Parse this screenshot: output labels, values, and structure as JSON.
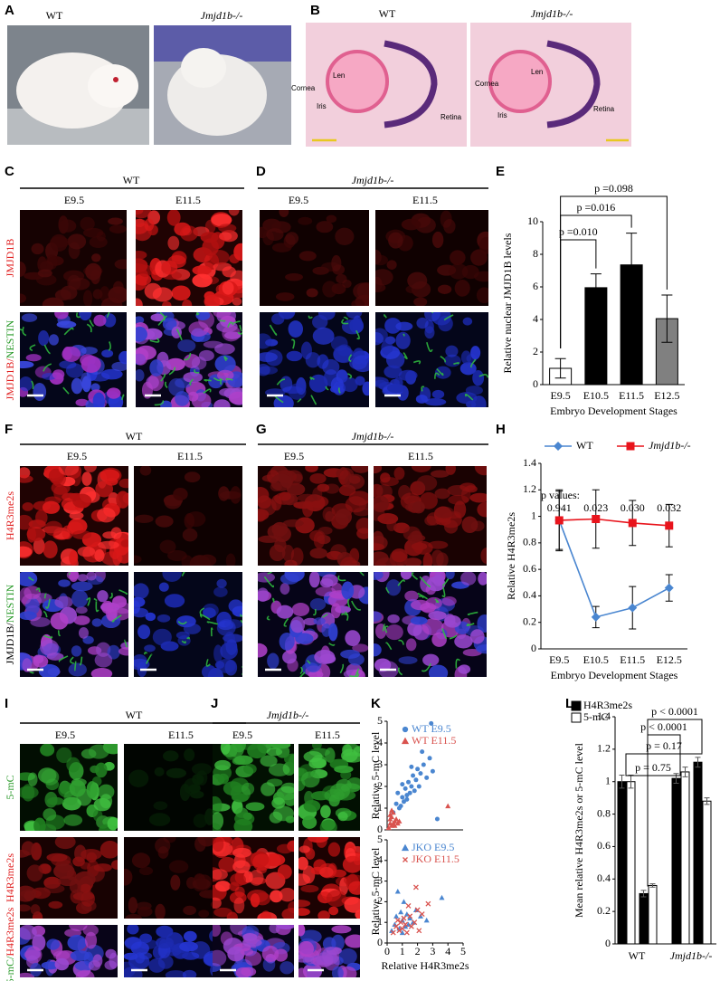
{
  "figure": {
    "A": {
      "letter": "A",
      "labels": [
        "WT",
        "Jmjd1b-/-"
      ]
    },
    "B": {
      "letter": "B",
      "labels": [
        "WT",
        "Jmjd1b-/-"
      ],
      "left_annotations": [
        "Len",
        "Cornea",
        "Iris",
        "Retina"
      ],
      "right_annotations": [
        "Cornea",
        "Len",
        "Iris",
        "Retina"
      ]
    },
    "C": {
      "letter": "C",
      "genotype": "WT",
      "stages": [
        "E9.5",
        "E11.5"
      ],
      "row_labels": [
        "JMJD1B",
        "JMJD1B/",
        "NESTIN"
      ]
    },
    "D": {
      "letter": "D",
      "genotype": "Jmjd1b-/-",
      "stages": [
        "E9.5",
        "E11.5"
      ]
    },
    "E": {
      "letter": "E"
    },
    "F": {
      "letter": "F",
      "genotype": "WT",
      "stages": [
        "E9.5",
        "E11.5"
      ],
      "row_labels": [
        "H4R3me2s",
        "JMJD1B/",
        "NESTIN"
      ]
    },
    "G": {
      "letter": "G",
      "genotype": "Jmjd1b-/-",
      "stages": [
        "E9.5",
        "E11.5"
      ]
    },
    "H": {
      "letter": "H"
    },
    "I": {
      "letter": "I",
      "genotype": "WT",
      "stages": [
        "E9.5",
        "E11.5"
      ],
      "row_labels": [
        "5-mC",
        "H4R3me2s",
        "5-mC/",
        "H4R3me2s"
      ]
    },
    "J": {
      "letter": "J",
      "genotype": "Jmjd1b-/-",
      "stages": [
        "E9.5",
        "E11.5"
      ]
    },
    "K": {
      "letter": "K"
    },
    "L": {
      "letter": "L"
    }
  },
  "chart_data": [
    {
      "type": "bar",
      "y_label": "Relative nuclear JMJD1B levels",
      "x_label": "Embryo Development Stages",
      "categories": [
        "E9.5",
        "E10.5",
        "E11.5",
        "E12.5"
      ],
      "values": [
        1.0,
        5.95,
        7.35,
        4.05
      ],
      "errors": [
        0.6,
        0.85,
        1.95,
        1.45
      ],
      "colors": [
        "#ffffff",
        "#000000",
        "#000000",
        "#808080"
      ],
      "ylim": [
        0,
        10
      ],
      "yticks": [
        0,
        2,
        4,
        6,
        8,
        10
      ],
      "annotations": [
        "p =0.010",
        "p =0.016",
        "p =0.098"
      ]
    },
    {
      "type": "line",
      "y_label": "Relative H4R3me2s",
      "x_label": "Embryo Development Stages",
      "categories": [
        "E9.5",
        "E10.5",
        "E11.5",
        "E12.5"
      ],
      "series": [
        {
          "name": "WT",
          "color": "#4a86d0",
          "marker": "diamond",
          "values": [
            0.97,
            0.24,
            0.31,
            0.46
          ],
          "errors": [
            0.23,
            0.08,
            0.16,
            0.1
          ]
        },
        {
          "name": "Jmjd1b-/-",
          "color": "#e8141c",
          "marker": "square",
          "values": [
            0.97,
            0.98,
            0.95,
            0.93
          ],
          "errors": [
            0.22,
            0.22,
            0.17,
            0.16
          ]
        }
      ],
      "ylim": [
        0,
        1.4
      ],
      "yticks": [
        0,
        0.2,
        0.4,
        0.6,
        0.8,
        1,
        1.2,
        1.4
      ],
      "legend": "top",
      "annotation": "p values:",
      "p_values": [
        "0.941",
        "0.023",
        "0.030",
        "0.032"
      ]
    },
    {
      "type": "scatter",
      "y_label": "Relative 5-mC level",
      "xlim": [
        0,
        5
      ],
      "ylim": [
        0,
        5
      ],
      "yticks": [
        0,
        1,
        2,
        3,
        4,
        5
      ],
      "legend": "top-left",
      "series": [
        {
          "name": "WT E9.5",
          "color": "#4a86d0",
          "marker": "circle",
          "x": [
            0.4,
            0.6,
            0.8,
            1.0,
            1.1,
            1.2,
            1.3,
            1.4,
            1.5,
            1.6,
            1.7,
            1.8,
            1.9,
            2.0,
            2.1,
            2.2,
            2.4,
            2.6,
            2.8,
            3.0,
            0.9,
            1.3,
            1.6,
            2.3,
            2.9,
            3.3,
            1.0,
            0.7
          ],
          "y": [
            0.8,
            1.2,
            1.0,
            1.5,
            1.3,
            1.9,
            1.6,
            2.2,
            1.7,
            2.0,
            2.5,
            1.8,
            2.3,
            2.8,
            2.0,
            2.6,
            3.0,
            2.4,
            3.3,
            2.7,
            1.1,
            1.4,
            2.9,
            3.6,
            4.9,
            0.5,
            2.1,
            1.7
          ]
        },
        {
          "name": "WT E11.5",
          "color": "#d9534f",
          "marker": "triangle",
          "x": [
            0.1,
            0.2,
            0.2,
            0.3,
            0.3,
            0.4,
            0.4,
            0.5,
            0.5,
            0.6,
            0.7,
            0.3,
            0.2,
            0.8,
            4.0
          ],
          "y": [
            0.1,
            0.3,
            0.5,
            0.2,
            0.6,
            0.3,
            0.8,
            0.4,
            0.2,
            0.5,
            0.3,
            0.9,
            0.7,
            0.4,
            1.1
          ]
        }
      ]
    },
    {
      "type": "scatter",
      "y_label": "Relative 5-mC level",
      "x_label": "Relative H4R3me2s",
      "xlim": [
        0,
        5
      ],
      "ylim": [
        0,
        5
      ],
      "xticks": [
        0,
        1,
        2,
        3,
        4,
        5
      ],
      "yticks": [
        0,
        1,
        2,
        3,
        4,
        5
      ],
      "legend": "top-left",
      "series": [
        {
          "name": "JKO E9.5",
          "color": "#4a86d0",
          "marker": "triangle",
          "x": [
            0.3,
            0.5,
            0.6,
            0.8,
            0.9,
            1.0,
            1.1,
            1.2,
            1.3,
            1.5,
            1.7,
            1.9,
            2.2,
            2.6,
            3.6,
            0.7,
            1.0,
            1.4
          ],
          "y": [
            0.6,
            0.9,
            1.3,
            0.7,
            1.5,
            1.1,
            2.0,
            0.8,
            1.4,
            1.2,
            1.0,
            1.6,
            1.3,
            1.1,
            2.2,
            2.5,
            0.5,
            0.9
          ]
        },
        {
          "name": "JKO E11.5",
          "color": "#d9534f",
          "marker": "cross",
          "x": [
            0.4,
            0.6,
            0.8,
            0.9,
            1.0,
            1.1,
            1.2,
            1.3,
            1.5,
            1.6,
            1.8,
            2.0,
            2.3,
            2.7,
            0.7,
            1.4,
            2.1,
            1.9
          ],
          "y": [
            0.5,
            0.8,
            0.6,
            1.0,
            0.7,
            1.2,
            0.9,
            0.5,
            1.3,
            0.8,
            1.0,
            1.6,
            1.4,
            1.9,
            1.1,
            1.8,
            0.6,
            2.7
          ]
        }
      ]
    },
    {
      "type": "bar",
      "y_label": "Mean relative H4R3me2s or 5-mC level",
      "categories": [
        null,
        null,
        null,
        null
      ],
      "group_labels": [
        "WT",
        "Jmjd1b-/-"
      ],
      "series": [
        {
          "name": "H4R3me2s",
          "color": "#000000",
          "values": [
            1.0,
            0.31,
            1.02,
            1.12
          ],
          "errors": [
            0.04,
            0.02,
            0.03,
            0.03
          ]
        },
        {
          "name": "5-mC",
          "color": "#ffffff",
          "values": [
            1.0,
            0.36,
            1.06,
            0.88
          ],
          "errors": [
            0.04,
            0.01,
            0.03,
            0.02
          ]
        }
      ],
      "ylim": [
        0,
        1.4
      ],
      "yticks": [
        0,
        0.2,
        0.4,
        0.6,
        0.8,
        1,
        1.2,
        1.4
      ],
      "legend": "top-left",
      "annotations": [
        "p = 0.75",
        "p = 0.17",
        "p < 0.0001",
        "p < 0.0001"
      ]
    }
  ]
}
